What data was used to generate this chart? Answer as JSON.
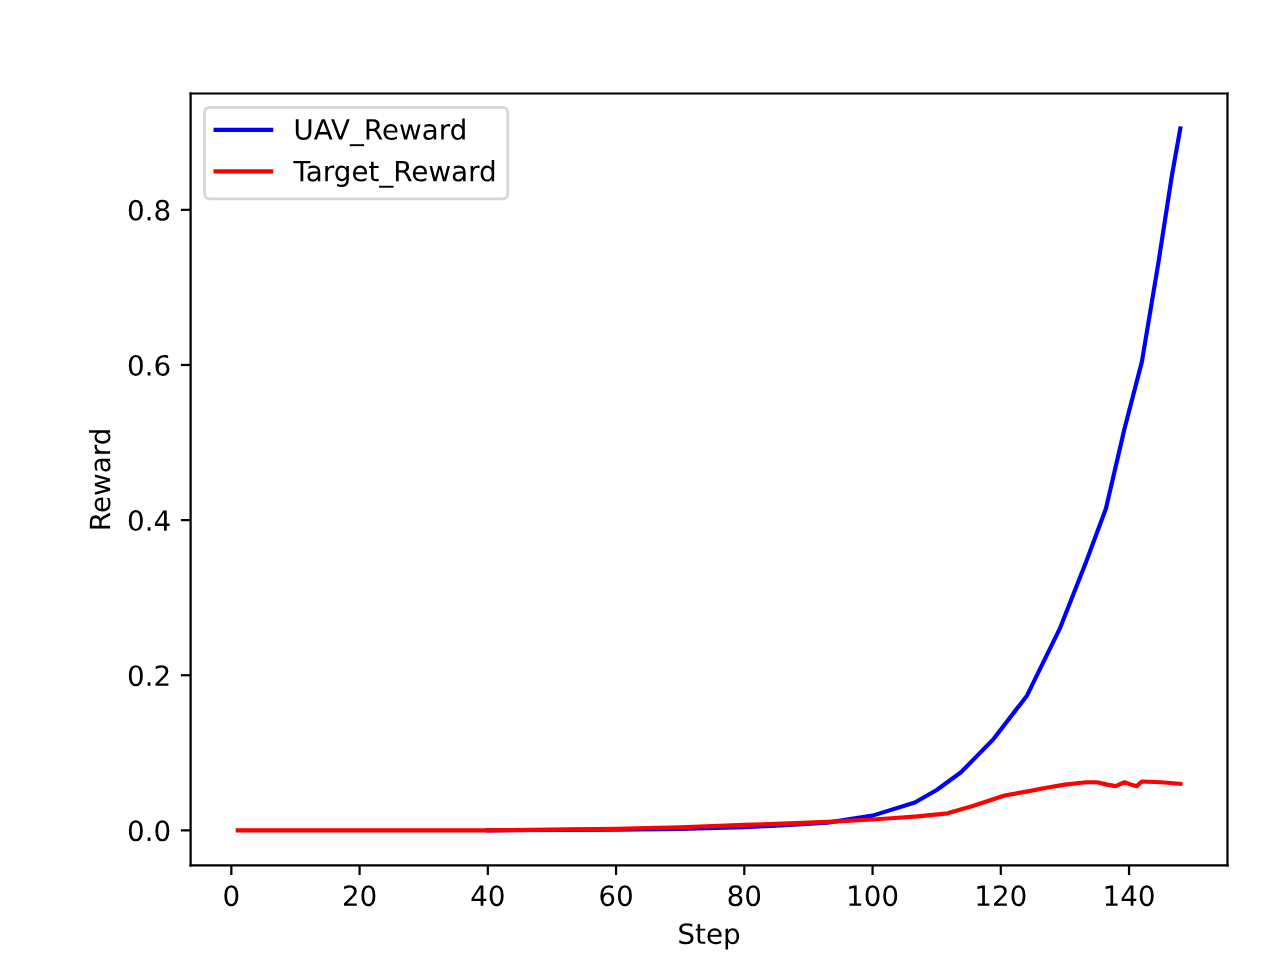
{
  "chart_data": {
    "type": "line",
    "xlabel": "Step",
    "ylabel": "Reward",
    "xlim": [
      -6.35,
      155.35
    ],
    "ylim": [
      -0.045,
      0.95
    ],
    "xticks": [
      0,
      20,
      40,
      60,
      80,
      100,
      120,
      140
    ],
    "yticks": [
      {
        "value": 0,
        "label": "0.0"
      },
      {
        "value": 0.2,
        "label": "0.2"
      },
      {
        "value": 0.4,
        "label": "0.4"
      },
      {
        "value": 0.6,
        "label": "0.6"
      },
      {
        "value": 0.8,
        "label": "0.8"
      }
    ],
    "grid": false,
    "legend": "top left",
    "marker": "none",
    "line_style": "solid",
    "series": [
      {
        "name": "UAV_Reward",
        "color": "#0000ff",
        "x": [
          40,
          60,
          70,
          80,
          87,
          93,
          100,
          106.6,
          110,
          113.8,
          118.9,
          124.1,
          129.2,
          133.3,
          136.4,
          139.3,
          142,
          144.6,
          146.7,
          148
        ],
        "values": [
          0,
          0.001,
          0.002,
          0.004,
          0.007,
          0.01,
          0.019,
          0.036,
          0.052,
          0.075,
          0.118,
          0.174,
          0.26,
          0.346,
          0.415,
          0.518,
          0.604,
          0.733,
          0.845,
          0.905
        ]
      },
      {
        "name": "Target_Reward",
        "color": "#ff0000",
        "x": [
          1,
          20,
          40,
          60,
          70,
          80,
          87,
          93,
          100,
          103.5,
          107,
          111.7,
          115.5,
          120.6,
          124,
          127.1,
          130,
          133.3,
          135,
          136.6,
          137.9,
          139.3,
          140.3,
          141.2,
          142,
          145,
          148
        ],
        "values": [
          0,
          0,
          0,
          0.002,
          0.004,
          0.007,
          0.009,
          0.011,
          0.014,
          0.016,
          0.018,
          0.022,
          0.031,
          0.045,
          0.05,
          0.055,
          0.059,
          0.062,
          0.062,
          0.059,
          0.057,
          0.062,
          0.059,
          0.057,
          0.063,
          0.062,
          0.06
        ]
      }
    ]
  }
}
